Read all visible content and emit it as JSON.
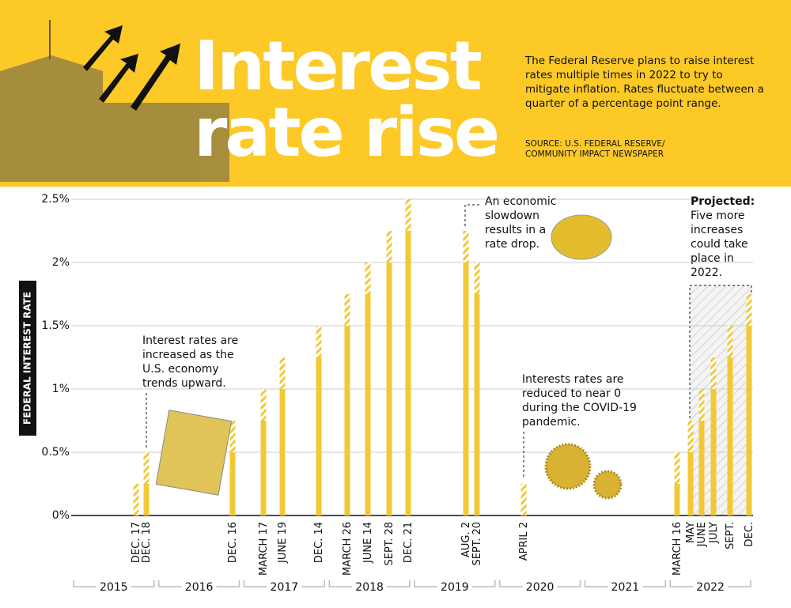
{
  "chart_data": {
    "type": "bar",
    "title": "Interest rate rise",
    "subtitle": "The Federal Reserve plans to raise interest rates multiple times in 2022 to try to mitigate inflation. Rates fluctuate between a quarter of a percentage point range.",
    "source": "SOURCE: U.S. FEDERAL RESERVE/ COMMUNITY IMPACT NEWSPAPER",
    "y_label": "FEDERAL INTEREST RATE",
    "categories": [
      "DEC. 17",
      "DEC. 18",
      "DEC. 16",
      "MARCH 17",
      "JUNE 19",
      "DEC. 14",
      "MARCH 26",
      "JUNE 14",
      "SEPT. 28",
      "DEC. 21",
      "AUG. 2",
      "SEPT. 20",
      "APRIL 2",
      "MARCH 16",
      "MAY",
      "JUNE",
      "JULY",
      "SEPT.",
      "DEC."
    ],
    "values": [
      0.25,
      0.5,
      0.75,
      1.0,
      1.25,
      1.5,
      1.75,
      2.0,
      2.25,
      2.5,
      2.25,
      2.0,
      0.25,
      0.5,
      0.75,
      1.0,
      1.25,
      1.5,
      1.75
    ],
    "color": "#f2c935",
    "ylim": [
      0,
      2.5
    ],
    "yticks": [
      {
        "value": 0,
        "label": "0%"
      },
      {
        "value": 0.5,
        "label": "0.5%"
      },
      {
        "value": 1,
        "label": "1%"
      },
      {
        "value": 1.5,
        "label": "1.5%"
      },
      {
        "value": 2,
        "label": "2%"
      },
      {
        "value": 2.5,
        "label": "2.5%"
      }
    ],
    "grid": true,
    "year_groups": [
      "2015",
      "2016",
      "2017",
      "2018",
      "2019",
      "2020",
      "2021",
      "2022"
    ],
    "annotations": [
      "Interest rates are increased as the U.S. economy trends upward.",
      "An economic slowdown results in a rate drop.",
      "Interests rates are reduced to near 0 during the COVID-19 pandemic."
    ],
    "projected_label": "Projected:",
    "projected_note": "Five more increases could take place in 2022."
  }
}
